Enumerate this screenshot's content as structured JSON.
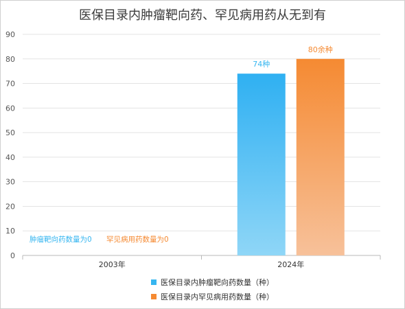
{
  "chart_data": {
    "type": "bar",
    "title": "医保目录内肿瘤靶向药、罕见病用药从无到有",
    "categories": [
      "2003年",
      "2024年"
    ],
    "ylim": [
      0,
      90
    ],
    "yticks": [
      0,
      10,
      20,
      30,
      40,
      50,
      60,
      70,
      80,
      90
    ],
    "grid": true,
    "legend_position": "bottom",
    "series": [
      {
        "name": "医保目录内肿瘤靶向药数量（种）",
        "values": [
          0,
          74
        ],
        "value_labels": [
          "",
          "74种"
        ],
        "color": "#36b6f0"
      },
      {
        "name": "医保目录内罕见病用药数量（种）",
        "values": [
          0,
          80
        ],
        "value_labels": [
          "",
          "80余种"
        ],
        "color": "#f58a32"
      }
    ],
    "annotations": [
      {
        "text": "肿瘤靶向药数量为0",
        "color": "#36b6f0"
      },
      {
        "text": "罕见病用药数量为0",
        "color": "#f58a32"
      }
    ]
  }
}
